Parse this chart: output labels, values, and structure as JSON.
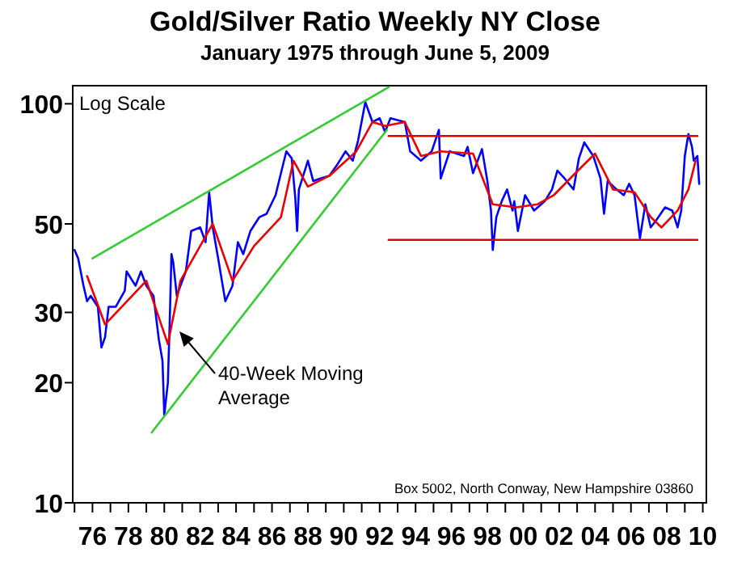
{
  "chart_data": {
    "type": "line",
    "title": "Gold/Silver Ratio Weekly NY Close",
    "subtitle": "January 1975 through June 5, 2009",
    "log": true,
    "ylim": [
      10,
      111
    ],
    "yticks": [
      10,
      20,
      30,
      50,
      100
    ],
    "xlim": [
      1974.9,
      2010.2
    ],
    "xticks": [
      {
        "value": 1975,
        "label": null
      },
      {
        "value": 1976,
        "label": "76"
      },
      {
        "value": 1977,
        "label": null
      },
      {
        "value": 1978,
        "label": "78"
      },
      {
        "value": 1979,
        "label": null
      },
      {
        "value": 1980,
        "label": "80"
      },
      {
        "value": 1981,
        "label": null
      },
      {
        "value": 1982,
        "label": "82"
      },
      {
        "value": 1983,
        "label": null
      },
      {
        "value": 1984,
        "label": "84"
      },
      {
        "value": 1985,
        "label": null
      },
      {
        "value": 1986,
        "label": "86"
      },
      {
        "value": 1987,
        "label": null
      },
      {
        "value": 1988,
        "label": "88"
      },
      {
        "value": 1989,
        "label": null
      },
      {
        "value": 1990,
        "label": "90"
      },
      {
        "value": 1991,
        "label": null
      },
      {
        "value": 1992,
        "label": "92"
      },
      {
        "value": 1993,
        "label": null
      },
      {
        "value": 1994,
        "label": "94"
      },
      {
        "value": 1995,
        "label": null
      },
      {
        "value": 1996,
        "label": "96"
      },
      {
        "value": 1997,
        "label": null
      },
      {
        "value": 1998,
        "label": "98"
      },
      {
        "value": 1999,
        "label": null
      },
      {
        "value": 2000,
        "label": "00"
      },
      {
        "value": 2001,
        "label": null
      },
      {
        "value": 2002,
        "label": "02"
      },
      {
        "value": 2003,
        "label": null
      },
      {
        "value": 2004,
        "label": "04"
      },
      {
        "value": 2005,
        "label": null
      },
      {
        "value": 2006,
        "label": "06"
      },
      {
        "value": 2007,
        "label": null
      },
      {
        "value": 2008,
        "label": "08"
      },
      {
        "value": 2009,
        "label": null
      },
      {
        "value": 2010,
        "label": "10"
      }
    ],
    "annotations": [
      "Log Scale",
      "40-Week Moving\nAverage",
      "Box 5002, North Conway, New Hampshire 03860"
    ],
    "series": [
      {
        "color": "#0000ff",
        "x": [
          1975.0,
          1975.2,
          1975.5,
          1975.7,
          1975.9,
          1976.3,
          1976.5,
          1976.7,
          1976.9,
          1977.3,
          1977.8,
          1977.9,
          1978.4,
          1978.7,
          1979.0,
          1979.4,
          1979.7,
          1979.9,
          1980.0,
          1980.2,
          1980.3,
          1980.4,
          1980.5,
          1980.7,
          1980.9,
          1981.2,
          1981.5,
          1982.0,
          1982.3,
          1982.5,
          1982.7,
          1983.0,
          1983.4,
          1983.8,
          1984.1,
          1984.4,
          1984.8,
          1985.3,
          1985.7,
          1986.2,
          1986.5,
          1986.8,
          1987.1,
          1987.3,
          1987.4,
          1987.5,
          1988.0,
          1988.3,
          1988.7,
          1989.2,
          1989.6,
          1990.1,
          1990.5,
          1990.8,
          1991.2,
          1991.6,
          1992.0,
          1992.3,
          1992.6,
          1993.4,
          1993.7,
          1994.3,
          1994.9,
          1995.3,
          1995.4,
          1995.9,
          1996.7,
          1996.9,
          1997.2,
          1997.7,
          1998.0,
          1998.2,
          1998.3,
          1998.5,
          1998.8,
          1999.1,
          1999.4,
          1999.5,
          1999.7,
          2000.1,
          2000.6,
          2001.2,
          2001.6,
          2001.9,
          2002.3,
          2002.8,
          2003.1,
          2003.4,
          2003.9,
          2004.3,
          2004.5,
          2004.7,
          2005.2,
          2005.6,
          2005.9,
          2006.2,
          2006.5,
          2006.8,
          2007.1,
          2007.4,
          2007.9,
          2008.3,
          2008.6,
          2008.8,
          2009.0,
          2009.2,
          2009.4,
          2009.5,
          2009.7,
          2009.8
        ],
        "values": [
          43,
          41,
          35,
          32,
          33,
          31,
          24.5,
          26,
          31,
          31,
          34,
          38,
          35,
          38,
          35,
          33,
          25.6,
          22.7,
          16.6,
          20,
          28,
          42,
          40,
          33,
          35,
          38,
          48,
          49,
          45,
          60,
          49,
          41,
          32,
          35,
          45,
          42,
          48,
          52,
          53,
          59,
          67,
          76,
          73,
          58,
          48,
          61,
          72,
          64,
          65,
          66,
          70,
          76,
          72,
          81,
          101,
          90,
          92,
          85,
          92,
          90,
          76,
          72,
          76,
          86,
          65,
          76,
          74,
          78,
          67,
          77,
          64,
          54,
          43,
          52,
          57,
          61,
          54,
          57,
          48,
          59,
          54,
          57,
          61,
          68,
          65,
          61,
          73,
          80,
          74,
          65,
          53,
          64,
          61,
          59,
          63,
          59,
          46,
          56,
          49,
          51,
          55,
          54,
          49,
          54,
          74,
          84,
          78,
          72,
          74,
          63
        ]
      },
      {
        "color": "#ee0000",
        "x": [
          1975.7,
          1976.7,
          1979.0,
          1980.2,
          1980.9,
          1982.7,
          1983.8,
          1985.0,
          1986.5,
          1987.2,
          1988.0,
          1989.2,
          1990.7,
          1991.6,
          1992.3,
          1993.4,
          1994.3,
          1995.4,
          1997.2,
          1998.3,
          1999.6,
          2000.8,
          2001.7,
          2002.9,
          2004.0,
          2005.0,
          2006.2,
          2007.1,
          2007.7,
          2008.6,
          2009.2,
          2009.6
        ],
        "values": [
          37,
          28,
          36,
          25,
          36,
          50,
          36,
          44,
          52,
          72,
          62,
          66,
          76,
          90,
          88,
          90,
          74,
          76,
          75,
          56,
          55,
          56,
          59,
          67,
          75,
          61,
          60,
          52,
          49,
          54,
          61,
          72
        ]
      },
      {
        "color": "#33cc33",
        "x": [
          1976.0,
          1992.5
        ],
        "values": [
          41,
          110
        ]
      },
      {
        "color": "#33cc33",
        "x": [
          1979.3,
          1992.4
        ],
        "values": [
          15,
          86
        ]
      },
      {
        "color": "#dd0000",
        "x": [
          1992.5,
          2009.7
        ],
        "values": [
          83,
          83
        ]
      },
      {
        "color": "#dd0000",
        "x": [
          1992.5,
          2009.7
        ],
        "values": [
          45.6,
          45.6
        ]
      }
    ]
  }
}
